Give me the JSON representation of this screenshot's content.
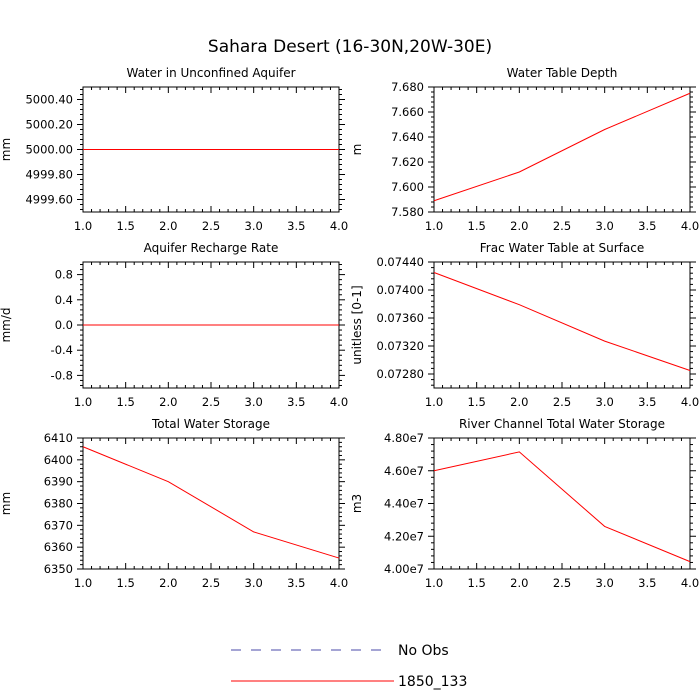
{
  "title": "Sahara Desert (16-30N,20W-30E)",
  "colors": {
    "model": "#ff0000",
    "obs": "#4a4aa8",
    "frame": "#000000"
  },
  "legend": [
    {
      "label": "No Obs",
      "style": "dashed",
      "color": "#4a4aa8"
    },
    {
      "label": "1850_133",
      "style": "solid",
      "color": "#ff0000"
    }
  ],
  "chart_data": [
    {
      "type": "line",
      "title": "Water in Unconfined Aquifer",
      "ylabel": "mm",
      "xlim": [
        1.0,
        4.0
      ],
      "xticks": [
        "1.0",
        "1.5",
        "2.0",
        "2.5",
        "3.0",
        "3.5",
        "4.0"
      ],
      "ylim": [
        4999.5,
        5000.5
      ],
      "yticks": [
        4999.6,
        4999.8,
        5000.0,
        5000.2,
        5000.4
      ],
      "ytick_labels": [
        "4999.60",
        "4999.80",
        "5000.00",
        "5000.20",
        "5000.40"
      ],
      "series": [
        {
          "name": "1850_133",
          "x": [
            1,
            2,
            3,
            4
          ],
          "y": [
            5000.0,
            5000.0,
            5000.0,
            5000.0
          ]
        }
      ]
    },
    {
      "type": "line",
      "title": "Water Table Depth",
      "ylabel": "m",
      "xlim": [
        1.0,
        4.0
      ],
      "xticks": [
        "1.0",
        "1.5",
        "2.0",
        "2.5",
        "3.0",
        "3.5",
        "4.0"
      ],
      "ylim": [
        7.58,
        7.68
      ],
      "yticks": [
        7.58,
        7.6,
        7.62,
        7.64,
        7.66,
        7.68
      ],
      "ytick_labels": [
        "7.580",
        "7.600",
        "7.620",
        "7.640",
        "7.660",
        "7.680"
      ],
      "series": [
        {
          "name": "1850_133",
          "x": [
            1,
            2,
            3,
            4
          ],
          "y": [
            7.589,
            7.612,
            7.646,
            7.675
          ]
        }
      ]
    },
    {
      "type": "line",
      "title": "Aquifer Recharge Rate",
      "ylabel": "mm/d",
      "xlim": [
        1.0,
        4.0
      ],
      "xticks": [
        "1.0",
        "1.5",
        "2.0",
        "2.5",
        "3.0",
        "3.5",
        "4.0"
      ],
      "ylim": [
        -1.0,
        1.0
      ],
      "yticks": [
        -0.8,
        -0.4,
        0.0,
        0.4,
        0.8
      ],
      "ytick_labels": [
        "-0.8",
        "-0.4",
        "0.0",
        "0.4",
        "0.8"
      ],
      "series": [
        {
          "name": "1850_133",
          "x": [
            1,
            2,
            3,
            4
          ],
          "y": [
            0.0,
            0.0,
            0.0,
            0.0
          ]
        }
      ]
    },
    {
      "type": "line",
      "title": "Frac Water Table at Surface",
      "ylabel": "unitless [0-1]",
      "xlim": [
        1.0,
        4.0
      ],
      "xticks": [
        "1.0",
        "1.5",
        "2.0",
        "2.5",
        "3.0",
        "3.5",
        "4.0"
      ],
      "ylim": [
        0.0726,
        0.0744
      ],
      "yticks": [
        0.0728,
        0.0732,
        0.0736,
        0.074,
        0.0744
      ],
      "ytick_labels": [
        "0.07280",
        "0.07320",
        "0.07360",
        "0.07400",
        "0.07440"
      ],
      "series": [
        {
          "name": "1850_133",
          "x": [
            1,
            2,
            3,
            4
          ],
          "y": [
            0.07425,
            0.07379,
            0.07327,
            0.07285
          ]
        }
      ]
    },
    {
      "type": "line",
      "title": "Total Water Storage",
      "ylabel": "mm",
      "xlim": [
        1.0,
        4.0
      ],
      "xticks": [
        "1.0",
        "1.5",
        "2.0",
        "2.5",
        "3.0",
        "3.5",
        "4.0"
      ],
      "ylim": [
        6350,
        6410
      ],
      "yticks": [
        6350,
        6360,
        6370,
        6380,
        6390,
        6400,
        6410
      ],
      "ytick_labels": [
        "6350",
        "6360",
        "6370",
        "6380",
        "6390",
        "6400",
        "6410"
      ],
      "series": [
        {
          "name": "1850_133",
          "x": [
            1,
            2,
            3,
            4
          ],
          "y": [
            6406,
            6390,
            6367,
            6355
          ]
        }
      ]
    },
    {
      "type": "line",
      "title": "River Channel Total Water Storage",
      "ylabel": "m3",
      "xlim": [
        1.0,
        4.0
      ],
      "xticks": [
        "1.0",
        "1.5",
        "2.0",
        "2.5",
        "3.0",
        "3.5",
        "4.0"
      ],
      "ylim": [
        40000000,
        48000000
      ],
      "yticks": [
        40000000,
        42000000,
        44000000,
        46000000,
        48000000
      ],
      "ytick_labels": [
        "4.00e7",
        "4.20e7",
        "4.40e7",
        "4.60e7",
        "4.80e7"
      ],
      "series": [
        {
          "name": "1850_133",
          "x": [
            1,
            2,
            3,
            4
          ],
          "y": [
            46000000,
            47150000,
            42600000,
            40450000
          ]
        }
      ]
    }
  ]
}
